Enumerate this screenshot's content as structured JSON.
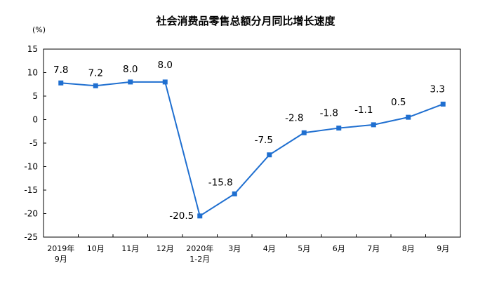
{
  "chart_data": {
    "type": "line",
    "title": "社会消费品零售总额分月同比增长速度",
    "unit": "(%)",
    "categories": [
      [
        "2019年",
        "9月"
      ],
      [
        "10月"
      ],
      [
        "11月"
      ],
      [
        "12月"
      ],
      [
        "2020年",
        "1-2月"
      ],
      [
        "3月"
      ],
      [
        "4月"
      ],
      [
        "5月"
      ],
      [
        "6月"
      ],
      [
        "7月"
      ],
      [
        "8月"
      ],
      [
        "9月"
      ]
    ],
    "values": [
      7.8,
      7.2,
      8.0,
      8.0,
      -20.5,
      -15.8,
      -7.5,
      -2.8,
      -1.8,
      -1.1,
      0.5,
      3.3
    ],
    "data_labels": [
      "7.8",
      "7.2",
      "8.0",
      "8.0",
      "-20.5",
      "-15.8",
      "-7.5",
      "-2.8",
      "-1.8",
      "-1.1",
      "0.5",
      "3.3"
    ],
    "ylim": [
      -25,
      15
    ],
    "yticks": [
      15,
      10,
      5,
      0,
      -5,
      -10,
      -15,
      -20,
      -25
    ],
    "grid": false,
    "legend": "none",
    "line_color": "#1f6fd0"
  }
}
